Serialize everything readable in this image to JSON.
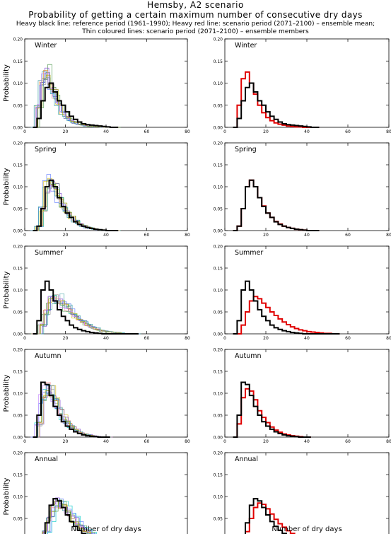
{
  "header": {
    "title": "Hemsby, A2 scenario",
    "subtitle": "Probability of getting a certain maximum number of consecutive dry days",
    "legend_line1": "Heavy black line: reference period (1961–1990); Heavy red line: scenario period (2071–2100) – ensemble mean;",
    "legend_line2": "Thin coloured lines: scenario period (2071–2100) – ensemble members"
  },
  "axes": {
    "ylabel": "Probability",
    "xlabel": "Number of dry days",
    "xlim": [
      0,
      80
    ],
    "ylim": [
      0,
      0.2
    ],
    "xticks": [
      "0",
      "20",
      "40",
      "60",
      "80"
    ],
    "yticks": [
      "0.00",
      "0.05",
      "0.10",
      "0.15",
      "0.20"
    ]
  },
  "colors": {
    "reference": "#000000",
    "scenario_mean": "#e00000",
    "members": [
      "#00c8c8",
      "#3c8c3c",
      "#d2b400",
      "#7a3ccf",
      "#ff8c8c",
      "#5a78ff",
      "#8c8c8c",
      "#2a9a9a",
      "#c080ff",
      "#9aa000"
    ]
  },
  "chart_data": [
    {
      "type": "line",
      "panel": "left",
      "season": "Winter",
      "x": [
        5,
        7,
        9,
        11,
        13,
        15,
        17,
        19,
        21,
        23,
        25,
        27,
        29,
        31,
        33,
        35,
        37,
        39,
        41,
        43,
        45
      ],
      "series": [
        {
          "role": "reference",
          "values": [
            0.0,
            0.02,
            0.06,
            0.09,
            0.1,
            0.08,
            0.06,
            0.05,
            0.035,
            0.025,
            0.018,
            0.012,
            0.008,
            0.006,
            0.005,
            0.004,
            0.003,
            0.002,
            0.001,
            0.0,
            0.0
          ]
        },
        {
          "role": "scenario_mean",
          "values": [
            0.0,
            0.05,
            0.11,
            0.125,
            0.1,
            0.075,
            0.05,
            0.033,
            0.022,
            0.015,
            0.01,
            0.007,
            0.005,
            0.003,
            0.002,
            0.001,
            0.001,
            0.0,
            0.0,
            0.0,
            0.0
          ]
        }
      ]
    },
    {
      "type": "line",
      "panel": "left",
      "season": "Spring",
      "x": [
        5,
        7,
        9,
        11,
        13,
        15,
        17,
        19,
        21,
        23,
        25,
        27,
        29,
        31,
        33,
        35,
        37,
        39,
        41,
        43,
        45
      ],
      "series": [
        {
          "role": "reference",
          "values": [
            0.0,
            0.01,
            0.05,
            0.1,
            0.115,
            0.1,
            0.075,
            0.055,
            0.04,
            0.03,
            0.02,
            0.014,
            0.01,
            0.007,
            0.005,
            0.003,
            0.002,
            0.001,
            0.0,
            0.0,
            0.0
          ]
        },
        {
          "role": "scenario_mean",
          "values": [
            0.0,
            0.01,
            0.05,
            0.1,
            0.115,
            0.1,
            0.075,
            0.056,
            0.04,
            0.03,
            0.021,
            0.015,
            0.01,
            0.007,
            0.005,
            0.003,
            0.002,
            0.001,
            0.0,
            0.0,
            0.0
          ]
        }
      ]
    },
    {
      "type": "line",
      "panel": "left",
      "season": "Summer",
      "x": [
        5,
        7,
        9,
        11,
        13,
        15,
        17,
        19,
        21,
        23,
        25,
        27,
        29,
        31,
        33,
        35,
        37,
        39,
        41,
        43,
        45,
        47,
        49,
        51,
        53,
        55
      ],
      "series": [
        {
          "role": "reference",
          "values": [
            0.0,
            0.03,
            0.1,
            0.12,
            0.1,
            0.075,
            0.055,
            0.04,
            0.03,
            0.02,
            0.014,
            0.01,
            0.007,
            0.005,
            0.003,
            0.002,
            0.001,
            0.0,
            0.0,
            0.0,
            0.0,
            0.0,
            0.0,
            0.0,
            0.0,
            0.0
          ]
        },
        {
          "role": "scenario_mean",
          "values": [
            0.0,
            0.0,
            0.02,
            0.05,
            0.075,
            0.085,
            0.08,
            0.07,
            0.06,
            0.05,
            0.042,
            0.034,
            0.027,
            0.021,
            0.016,
            0.012,
            0.009,
            0.007,
            0.005,
            0.004,
            0.003,
            0.002,
            0.001,
            0.001,
            0.0,
            0.0
          ]
        }
      ]
    },
    {
      "type": "line",
      "panel": "left",
      "season": "Autumn",
      "x": [
        5,
        7,
        9,
        11,
        13,
        15,
        17,
        19,
        21,
        23,
        25,
        27,
        29,
        31,
        33,
        35,
        37,
        39,
        41
      ],
      "series": [
        {
          "role": "reference",
          "values": [
            0.0,
            0.05,
            0.125,
            0.12,
            0.095,
            0.07,
            0.05,
            0.035,
            0.025,
            0.018,
            0.012,
            0.008,
            0.005,
            0.003,
            0.002,
            0.001,
            0.0,
            0.0,
            0.0
          ]
        },
        {
          "role": "scenario_mean",
          "values": [
            0.0,
            0.03,
            0.09,
            0.11,
            0.105,
            0.085,
            0.06,
            0.045,
            0.033,
            0.023,
            0.016,
            0.011,
            0.007,
            0.005,
            0.003,
            0.002,
            0.001,
            0.0,
            0.0
          ]
        }
      ]
    },
    {
      "type": "line",
      "panel": "left",
      "season": "Annual",
      "x": [
        7,
        9,
        11,
        13,
        15,
        17,
        19,
        21,
        23,
        25,
        27,
        29,
        31,
        33,
        35,
        37,
        39,
        41,
        43,
        45,
        47,
        49,
        51,
        53,
        55
      ],
      "series": [
        {
          "role": "reference",
          "values": [
            0.0,
            0.01,
            0.04,
            0.08,
            0.095,
            0.09,
            0.075,
            0.058,
            0.043,
            0.032,
            0.023,
            0.016,
            0.011,
            0.008,
            0.005,
            0.003,
            0.002,
            0.001,
            0.0,
            0.0,
            0.0,
            0.0,
            0.0,
            0.0,
            0.0
          ]
        },
        {
          "role": "scenario_mean",
          "values": [
            0.0,
            0.0,
            0.02,
            0.05,
            0.075,
            0.085,
            0.082,
            0.072,
            0.06,
            0.048,
            0.038,
            0.03,
            0.022,
            0.016,
            0.012,
            0.009,
            0.006,
            0.004,
            0.003,
            0.002,
            0.001,
            0.001,
            0.0,
            0.0,
            0.0
          ]
        }
      ]
    }
  ]
}
